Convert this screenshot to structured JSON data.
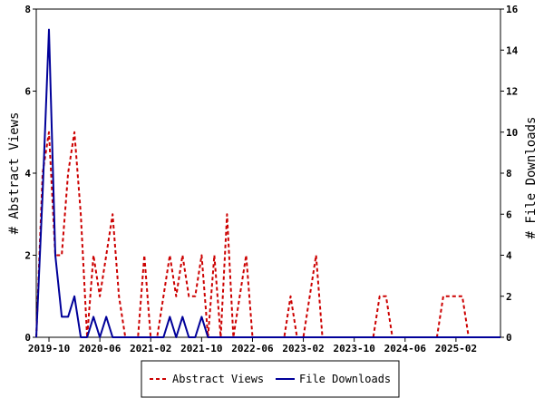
{
  "chart_data": {
    "type": "line",
    "x_tick_labels": [
      "2019-10",
      "2020-06",
      "2021-02",
      "2021-10",
      "2022-06",
      "2023-02",
      "2023-10",
      "2024-06",
      "2025-02"
    ],
    "ylabel_left": "# Abstract Views",
    "ylabel_right": "# File Downloads",
    "ylim_left": [
      0,
      8
    ],
    "ylim_right": [
      0,
      16
    ],
    "y_ticks_left": [
      0,
      2,
      4,
      6,
      8
    ],
    "y_ticks_right": [
      0,
      2,
      4,
      6,
      8,
      10,
      12,
      14,
      16
    ],
    "legend_position": "bottom-center",
    "grid": false,
    "series": [
      {
        "name": "Abstract Views",
        "axis": "left",
        "color": "#cc0000",
        "style": "dashed",
        "points": [
          [
            "2019-08",
            0
          ],
          [
            "2019-09",
            4
          ],
          [
            "2019-10",
            5
          ],
          [
            "2019-11",
            2
          ],
          [
            "2019-12",
            2
          ],
          [
            "2020-01",
            4
          ],
          [
            "2020-02",
            5
          ],
          [
            "2020-03",
            3
          ],
          [
            "2020-04",
            0
          ],
          [
            "2020-05",
            2
          ],
          [
            "2020-06",
            1
          ],
          [
            "2020-07",
            2
          ],
          [
            "2020-08",
            3
          ],
          [
            "2020-09",
            1
          ],
          [
            "2020-10",
            0
          ],
          [
            "2020-11",
            0
          ],
          [
            "2020-12",
            0
          ],
          [
            "2021-01",
            2
          ],
          [
            "2021-02",
            0
          ],
          [
            "2021-03",
            0
          ],
          [
            "2021-04",
            1
          ],
          [
            "2021-05",
            2
          ],
          [
            "2021-06",
            1
          ],
          [
            "2021-07",
            2
          ],
          [
            "2021-08",
            1
          ],
          [
            "2021-09",
            1
          ],
          [
            "2021-10",
            2
          ],
          [
            "2021-11",
            0
          ],
          [
            "2021-12",
            2
          ],
          [
            "2022-01",
            0
          ],
          [
            "2022-02",
            3
          ],
          [
            "2022-03",
            0
          ],
          [
            "2022-04",
            1
          ],
          [
            "2022-05",
            2
          ],
          [
            "2022-06",
            0
          ],
          [
            "2022-07",
            0
          ],
          [
            "2022-08",
            0
          ],
          [
            "2022-09",
            0
          ],
          [
            "2022-10",
            0
          ],
          [
            "2022-11",
            0
          ],
          [
            "2022-12",
            1
          ],
          [
            "2023-01",
            0
          ],
          [
            "2023-02",
            0
          ],
          [
            "2023-03",
            1
          ],
          [
            "2023-04",
            2
          ],
          [
            "2023-05",
            0
          ],
          [
            "2023-06",
            0
          ],
          [
            "2023-07",
            0
          ],
          [
            "2023-08",
            0
          ],
          [
            "2023-09",
            0
          ],
          [
            "2023-10",
            0
          ],
          [
            "2023-11",
            0
          ],
          [
            "2023-12",
            0
          ],
          [
            "2024-01",
            0
          ],
          [
            "2024-02",
            1
          ],
          [
            "2024-03",
            1
          ],
          [
            "2024-04",
            0
          ],
          [
            "2024-05",
            0
          ],
          [
            "2024-06",
            0
          ],
          [
            "2024-07",
            0
          ],
          [
            "2024-08",
            0
          ],
          [
            "2024-09",
            0
          ],
          [
            "2024-10",
            0
          ],
          [
            "2024-11",
            0
          ],
          [
            "2024-12",
            1
          ],
          [
            "2025-01",
            1
          ],
          [
            "2025-02",
            1
          ],
          [
            "2025-03",
            1
          ],
          [
            "2025-04",
            0
          ],
          [
            "2025-05",
            0
          ],
          [
            "2025-06",
            0
          ],
          [
            "2025-07",
            0
          ],
          [
            "2025-08",
            0
          ],
          [
            "2025-09",
            0
          ]
        ]
      },
      {
        "name": "File Downloads",
        "axis": "right",
        "color": "#000099",
        "style": "solid",
        "points": [
          [
            "2019-08",
            0
          ],
          [
            "2019-09",
            7
          ],
          [
            "2019-10",
            15
          ],
          [
            "2019-11",
            4
          ],
          [
            "2019-12",
            1
          ],
          [
            "2020-01",
            1
          ],
          [
            "2020-02",
            2
          ],
          [
            "2020-03",
            0
          ],
          [
            "2020-04",
            0
          ],
          [
            "2020-05",
            1
          ],
          [
            "2020-06",
            0
          ],
          [
            "2020-07",
            1
          ],
          [
            "2020-08",
            0
          ],
          [
            "2020-09",
            0
          ],
          [
            "2020-10",
            0
          ],
          [
            "2020-11",
            0
          ],
          [
            "2020-12",
            0
          ],
          [
            "2021-01",
            0
          ],
          [
            "2021-02",
            0
          ],
          [
            "2021-03",
            0
          ],
          [
            "2021-04",
            0
          ],
          [
            "2021-05",
            1
          ],
          [
            "2021-06",
            0
          ],
          [
            "2021-07",
            1
          ],
          [
            "2021-08",
            0
          ],
          [
            "2021-09",
            0
          ],
          [
            "2021-10",
            1
          ],
          [
            "2021-11",
            0
          ],
          [
            "2021-12",
            0
          ],
          [
            "2022-01",
            0
          ],
          [
            "2022-02",
            0
          ],
          [
            "2022-03",
            0
          ],
          [
            "2022-04",
            0
          ],
          [
            "2022-05",
            0
          ],
          [
            "2022-06",
            0
          ],
          [
            "2022-07",
            0
          ],
          [
            "2022-08",
            0
          ],
          [
            "2022-09",
            0
          ],
          [
            "2022-10",
            0
          ],
          [
            "2022-11",
            0
          ],
          [
            "2022-12",
            0
          ],
          [
            "2023-01",
            0
          ],
          [
            "2023-02",
            0
          ],
          [
            "2023-03",
            0
          ],
          [
            "2023-04",
            0
          ],
          [
            "2023-05",
            0
          ],
          [
            "2023-06",
            0
          ],
          [
            "2023-07",
            0
          ],
          [
            "2023-08",
            0
          ],
          [
            "2023-09",
            0
          ],
          [
            "2023-10",
            0
          ],
          [
            "2023-11",
            0
          ],
          [
            "2023-12",
            0
          ],
          [
            "2024-01",
            0
          ],
          [
            "2024-02",
            0
          ],
          [
            "2024-03",
            0
          ],
          [
            "2024-04",
            0
          ],
          [
            "2024-05",
            0
          ],
          [
            "2024-06",
            0
          ],
          [
            "2024-07",
            0
          ],
          [
            "2024-08",
            0
          ],
          [
            "2024-09",
            0
          ],
          [
            "2024-10",
            0
          ],
          [
            "2024-11",
            0
          ],
          [
            "2024-12",
            0
          ],
          [
            "2025-01",
            0
          ],
          [
            "2025-02",
            0
          ],
          [
            "2025-03",
            0
          ],
          [
            "2025-04",
            0
          ],
          [
            "2025-05",
            0
          ],
          [
            "2025-06",
            0
          ],
          [
            "2025-07",
            0
          ],
          [
            "2025-08",
            0
          ],
          [
            "2025-09",
            0
          ]
        ]
      }
    ]
  }
}
